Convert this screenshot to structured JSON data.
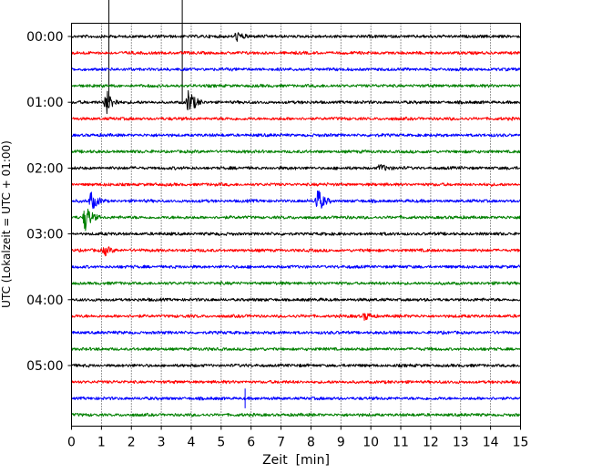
{
  "chart_data": {
    "type": "line",
    "title": "",
    "xlabel": "Zeit  [min]",
    "ylabel": "UTC (Lokalzeit = UTC + 01:00)",
    "xlim": [
      0,
      15
    ],
    "x_ticks": [
      "0",
      "1",
      "2",
      "3",
      "4",
      "5",
      "6",
      "7",
      "8",
      "9",
      "10",
      "11",
      "12",
      "13",
      "14",
      "15"
    ],
    "y_ticks": [
      {
        "row": 0,
        "label": "00:00"
      },
      {
        "row": 4,
        "label": "01:00"
      },
      {
        "row": 8,
        "label": "02:00"
      },
      {
        "row": 12,
        "label": "03:00"
      },
      {
        "row": 16,
        "label": "04:00"
      },
      {
        "row": 20,
        "label": "05:00"
      }
    ],
    "grid": "vertical-dotted",
    "trace_count": 24,
    "trace_colors": [
      "#000000",
      "#ff0000",
      "#0000ff",
      "#008000"
    ],
    "events": [
      {
        "trace": 0,
        "minute": 5.5,
        "amplitude": 0.5
      },
      {
        "trace": 0,
        "minute": 1.25,
        "amplitude": 8,
        "type": "spike"
      },
      {
        "trace": 0,
        "minute": 3.7,
        "amplitude": 8,
        "type": "spike"
      },
      {
        "trace": 4,
        "minute": 1.15,
        "amplitude": 1.4
      },
      {
        "trace": 4,
        "minute": 3.9,
        "amplitude": 1.4
      },
      {
        "trace": 8,
        "minute": 10.3,
        "amplitude": 0.4
      },
      {
        "trace": 10,
        "minute": 0.65,
        "amplitude": 1.0
      },
      {
        "trace": 10,
        "minute": 8.2,
        "amplitude": 1.4
      },
      {
        "trace": 11,
        "minute": 0.45,
        "amplitude": 1.5
      },
      {
        "trace": 13,
        "minute": 1.1,
        "amplitude": 0.5
      },
      {
        "trace": 17,
        "minute": 9.8,
        "amplitude": 0.4
      },
      {
        "trace": 22,
        "minute": 5.8,
        "amplitude": 1.2,
        "type": "spike"
      }
    ]
  }
}
